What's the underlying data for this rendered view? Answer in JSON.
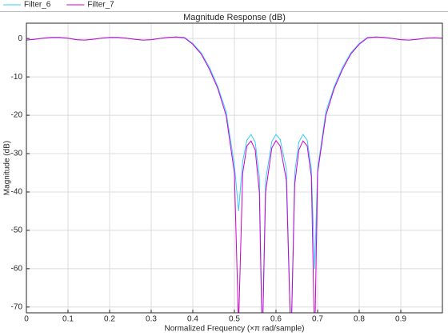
{
  "chart_data": {
    "type": "line",
    "title": "Magnitude Response (dB)",
    "x_label": "Normalized Frequency (×π rad/sample)",
    "y_label": "Magnitude (dB)",
    "x": [
      0,
      0.02,
      0.04,
      0.06,
      0.08,
      0.1,
      0.12,
      0.14,
      0.16,
      0.18,
      0.2,
      0.22,
      0.24,
      0.26,
      0.28,
      0.3,
      0.32,
      0.34,
      0.36,
      0.38,
      0.4,
      0.42,
      0.44,
      0.46,
      0.48,
      0.5,
      0.51,
      0.52,
      0.53,
      0.54,
      0.55,
      0.56,
      0.567,
      0.575,
      0.59,
      0.6,
      0.61,
      0.625,
      0.636,
      0.645,
      0.655,
      0.665,
      0.675,
      0.685,
      0.693,
      0.7,
      0.72,
      0.74,
      0.76,
      0.78,
      0.8,
      0.82,
      0.84,
      0.86,
      0.88,
      0.9,
      0.92,
      0.94,
      0.96,
      0.98,
      1.0
    ],
    "series": [
      {
        "name": "Filter_6",
        "color": "#33ccff",
        "values": [
          -0.4,
          -0.2,
          0.1,
          0.3,
          0.3,
          0.1,
          -0.3,
          -0.4,
          -0.2,
          0.1,
          0.3,
          0.3,
          0.1,
          -0.2,
          -0.4,
          -0.3,
          0,
          0.3,
          0.4,
          0.3,
          -1.3,
          -3.7,
          -7.5,
          -12.5,
          -19,
          -33,
          -45,
          -32,
          -26.5,
          -25,
          -27,
          -36,
          -80,
          -37,
          -26.8,
          -25,
          -26.3,
          -34,
          -80,
          -35,
          -27,
          -25,
          -26.5,
          -34,
          -60,
          -34,
          -19,
          -12.5,
          -7.5,
          -3.7,
          -1.3,
          0.3,
          0.4,
          0.3,
          0,
          -0.3,
          -0.4,
          -0.2,
          0.1,
          0.2,
          0.1
        ]
      },
      {
        "name": "Filter_7",
        "color": "#cc00cc",
        "values": [
          -0.4,
          -0.2,
          0.1,
          0.3,
          0.3,
          0.1,
          -0.3,
          -0.4,
          -0.2,
          0.1,
          0.3,
          0.3,
          0.1,
          -0.2,
          -0.4,
          -0.3,
          0,
          0.3,
          0.4,
          0.2,
          -1.5,
          -4,
          -8,
          -13,
          -20,
          -35,
          -75,
          -35,
          -28,
          -26.7,
          -29,
          -40,
          -80,
          -40,
          -28.5,
          -26.6,
          -28,
          -37,
          -80,
          -38,
          -29,
          -26.7,
          -28,
          -36,
          -80,
          -35,
          -20,
          -13,
          -8,
          -4,
          -1.5,
          0.2,
          0.4,
          0.3,
          0,
          -0.3,
          -0.4,
          -0.2,
          0.1,
          0.2,
          0.1
        ]
      }
    ],
    "xlim": [
      0,
      1
    ],
    "ylim": [
      -71.5,
      4
    ],
    "xticks": [
      0,
      0.1,
      0.2,
      0.3,
      0.4,
      0.5,
      0.6,
      0.7,
      0.8,
      0.9
    ],
    "yticks": [
      0,
      -10,
      -20,
      -30,
      -40,
      -50,
      -60,
      -70
    ],
    "grid": true,
    "legend": "top-left"
  }
}
